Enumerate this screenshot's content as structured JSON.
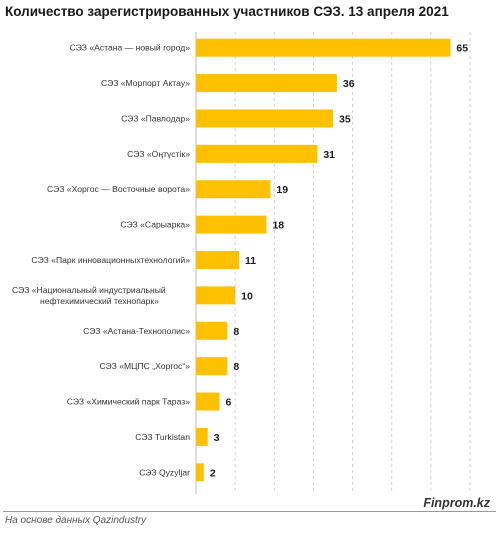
{
  "chart_data": {
    "type": "bar",
    "orientation": "horizontal",
    "title": "Количество зарегистрированных участников СЭЗ. 13 апреля 2021",
    "categories": [
      "СЭЗ «Астана — новый город»",
      "СЭЗ «Морпорт Актау»",
      "СЭЗ «Павлодар»",
      "СЭЗ «Оңтүстік»",
      "СЭЗ «Хоргос — Восточные ворота»",
      "СЭЗ «Сарыарка»",
      "СЭЗ «Парк инновационныхтехнологий»",
      "СЭЗ «Национальный индустриальный\nнефтехимический технопарк»",
      "СЭЗ «Астана-Технополис»",
      "СЭЗ «МЦПС „Хоргос“»",
      "СЭЗ «Химический парк Тараз»",
      "СЭЗ Turkistan",
      "СЭЗ Qyzyljar"
    ],
    "values": [
      65,
      36,
      35,
      31,
      19,
      18,
      11,
      10,
      8,
      8,
      6,
      3,
      2
    ],
    "xlim": [
      0,
      70
    ],
    "bar_color": "#FFC000",
    "grid": "vertical-dashed",
    "legend": "none"
  },
  "source": "На основе данных Qazindustry",
  "brand": "Finprom.kz"
}
